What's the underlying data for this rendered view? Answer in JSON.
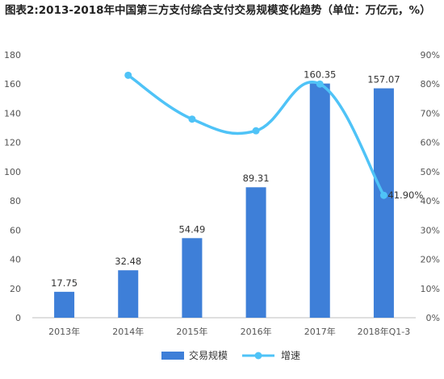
{
  "chart_data": {
    "type": "bar+line",
    "title": "图表2:2013-2018年中国第三方支付综合支付交易规模变化趋势（单位：万亿元，%）",
    "categories": [
      "2013年",
      "2014年",
      "2015年",
      "2016年",
      "2017年",
      "2018年Q1-3"
    ],
    "series": [
      {
        "name": "交易规模",
        "type": "bar",
        "axis": "left",
        "color": "#3e7fd8",
        "values": [
          17.75,
          32.48,
          54.49,
          89.31,
          160.35,
          157.07
        ],
        "labels": [
          "17.75",
          "32.48",
          "54.49",
          "89.31",
          "160.35",
          "157.07"
        ]
      },
      {
        "name": "增速",
        "type": "line",
        "axis": "right",
        "color": "#4fc3f7",
        "values": [
          null,
          0.83,
          0.68,
          0.64,
          0.8,
          0.419
        ],
        "labels": [
          "",
          "",
          "",
          "",
          "",
          "41.90%"
        ]
      }
    ],
    "y_left": {
      "ticks": [
        0,
        20,
        40,
        60,
        80,
        100,
        120,
        140,
        160,
        180
      ],
      "lim": [
        0,
        180
      ]
    },
    "y_right": {
      "ticks": [
        "0%",
        "10%",
        "20%",
        "30%",
        "40%",
        "50%",
        "60%",
        "70%",
        "80%",
        "90%"
      ],
      "lim": [
        0,
        0.9
      ]
    },
    "legend_position": "bottom",
    "grid": false
  }
}
